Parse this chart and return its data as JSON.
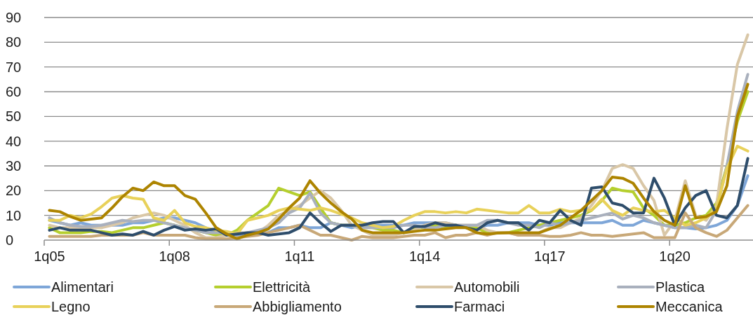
{
  "chart_data": {
    "type": "line",
    "categories": [
      "1q05",
      null,
      null,
      null,
      null,
      null,
      null,
      null,
      null,
      null,
      null,
      null,
      "1q08",
      null,
      null,
      null,
      null,
      null,
      null,
      null,
      null,
      null,
      null,
      null,
      "1q11",
      null,
      null,
      null,
      null,
      null,
      null,
      null,
      null,
      null,
      null,
      null,
      "1q14",
      null,
      null,
      null,
      null,
      null,
      null,
      null,
      null,
      null,
      null,
      null,
      "1q17",
      null,
      null,
      null,
      null,
      null,
      null,
      null,
      null,
      null,
      null,
      null,
      "1q20",
      null,
      null,
      null,
      null,
      null,
      null,
      null
    ],
    "ylim": [
      0,
      90
    ],
    "yticks": [
      0,
      10,
      20,
      30,
      40,
      50,
      60,
      70,
      80,
      90
    ],
    "grid": "y",
    "legend": "bottom",
    "line_style": "solid",
    "marker": "none",
    "series": [
      {
        "name": "Alimentari",
        "color": "#7ea6d8",
        "values": [
          8,
          7,
          6,
          7,
          6,
          6,
          6,
          6,
          7,
          7,
          8,
          9,
          9,
          8,
          7,
          5,
          3,
          3,
          2,
          2,
          3,
          3,
          5,
          5,
          6,
          5,
          5,
          7,
          6,
          5,
          6,
          6,
          6,
          6,
          6,
          7,
          7,
          7,
          7,
          6,
          5,
          5,
          6,
          6,
          7,
          7,
          7,
          6,
          6,
          7,
          7,
          7,
          7,
          7,
          8,
          6,
          6,
          8,
          7,
          6,
          5,
          5,
          4.5,
          5,
          6,
          8,
          14,
          26
        ]
      },
      {
        "name": "Elettricità",
        "color": "#b5cf2e",
        "values": [
          5,
          3,
          3,
          3,
          3.5,
          3.5,
          3,
          4,
          5,
          5,
          6,
          7,
          6,
          5,
          4,
          3,
          2,
          2,
          4,
          8,
          11,
          14,
          21,
          19.5,
          18,
          19.5,
          13,
          7,
          6,
          6,
          5,
          5,
          4,
          4,
          3,
          5,
          5,
          6,
          5,
          6,
          5,
          5,
          3,
          3,
          3,
          4,
          5,
          6,
          7,
          8,
          9,
          10,
          12,
          16,
          21,
          20,
          19.5,
          13,
          10,
          6,
          6,
          7,
          9,
          10,
          15,
          30,
          48,
          60
        ]
      },
      {
        "name": "Automobili",
        "color": "#d9c7a7",
        "values": [
          6,
          5,
          5,
          5,
          5,
          5,
          6,
          7,
          9,
          10,
          11,
          10,
          8,
          6,
          3,
          1,
          1,
          2,
          3,
          3,
          3,
          6,
          10,
          12,
          14,
          17,
          20,
          17,
          12,
          6,
          4,
          2,
          2,
          2,
          3,
          4,
          6,
          7,
          7,
          6,
          6,
          6,
          4,
          3,
          3,
          2,
          2,
          3,
          5,
          5,
          7,
          9,
          14,
          20,
          29,
          30.5,
          29,
          22,
          16,
          2,
          8,
          24,
          10,
          8,
          14,
          45,
          71,
          83
        ]
      },
      {
        "name": "Plastica",
        "color": "#a9b0bd",
        "values": [
          9,
          7,
          6,
          5.5,
          5.5,
          6,
          7,
          8,
          7.5,
          8,
          8,
          7,
          6,
          5,
          4,
          3,
          3,
          3,
          2.5,
          3,
          4,
          5,
          7,
          11,
          13,
          19,
          11,
          7,
          6,
          6,
          5,
          5,
          5,
          5,
          6,
          6,
          5,
          5,
          6,
          6,
          6,
          6,
          8,
          8,
          7,
          6,
          6,
          5,
          7,
          6,
          7,
          8,
          9,
          10,
          11,
          8.5,
          10,
          9,
          7,
          6,
          5,
          5,
          6,
          5,
          12,
          30,
          52,
          67
        ]
      },
      {
        "name": "Legno",
        "color": "#e8d15a",
        "values": [
          8,
          8,
          10,
          9,
          10.5,
          13.5,
          17,
          18,
          17,
          16.5,
          9,
          8,
          12,
          7,
          5.5,
          5,
          4,
          3.5,
          2.5,
          8,
          9,
          10,
          12,
          13,
          12.5,
          12,
          13,
          12,
          10.5,
          9,
          7,
          6,
          5,
          5.5,
          8,
          10,
          11.5,
          11.5,
          11,
          11.5,
          11,
          12.5,
          12,
          11.5,
          11,
          11,
          14,
          11,
          11,
          12.5,
          11.5,
          12,
          12,
          16.5,
          12,
          10,
          13,
          12,
          11.5,
          12,
          9,
          6,
          7,
          9,
          13,
          29,
          38,
          36
        ]
      },
      {
        "name": "Abbigliamento",
        "color": "#c8a878",
        "values": [
          1.5,
          1.5,
          1.5,
          1.5,
          1.5,
          2,
          2,
          2,
          2,
          3,
          2,
          2,
          2,
          2,
          1,
          0.5,
          0.5,
          0.5,
          1,
          1.5,
          2,
          3,
          4,
          5,
          6,
          4,
          2,
          2,
          1,
          0,
          1.5,
          1,
          1,
          1,
          1.5,
          2,
          2,
          3,
          1,
          2,
          2,
          3,
          2,
          3,
          3,
          2,
          2,
          2,
          1.5,
          1.5,
          2,
          3,
          2,
          2,
          1.5,
          2,
          2.5,
          3,
          1,
          1,
          1,
          11,
          5,
          3,
          1.5,
          4,
          9,
          14
        ]
      },
      {
        "name": "Farmaci",
        "color": "#2e4d6b",
        "values": [
          4,
          5,
          4,
          4,
          4,
          3,
          2,
          2.5,
          2,
          3.5,
          2,
          4,
          5.5,
          4,
          4.5,
          4,
          4.5,
          2,
          2.5,
          3,
          3,
          2,
          2.5,
          3,
          5,
          11,
          7,
          3.5,
          6,
          6,
          6,
          7,
          7.5,
          7.5,
          3,
          5.5,
          5.5,
          7,
          6,
          6,
          5,
          4,
          7,
          8,
          7,
          7,
          4,
          8,
          7,
          12,
          8,
          6,
          21,
          21.5,
          15,
          14,
          11,
          11,
          25,
          17,
          6,
          13,
          18,
          20,
          10,
          9,
          14,
          33
        ]
      },
      {
        "name": "Meccanica",
        "color": "#ad8400",
        "values": [
          12,
          11.5,
          9.5,
          8,
          8.5,
          9,
          13,
          17.5,
          21,
          20,
          23.5,
          22,
          22,
          18,
          16.5,
          11,
          5,
          2.5,
          0.5,
          2,
          3,
          4.5,
          8.5,
          13,
          17,
          24,
          19,
          15,
          11.5,
          8.5,
          4,
          3,
          3,
          3,
          3,
          3.5,
          4,
          4,
          4.5,
          5,
          5,
          3,
          2.5,
          2.8,
          3,
          3,
          3,
          3,
          4.5,
          6,
          9,
          12,
          16,
          20,
          25.5,
          25,
          23,
          17,
          11.5,
          8,
          6,
          22,
          9,
          9.5,
          11.5,
          22,
          50,
          63
        ]
      }
    ]
  }
}
